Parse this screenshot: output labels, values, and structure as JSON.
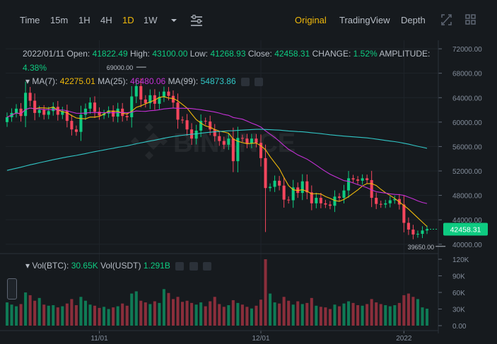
{
  "toolbar": {
    "intervals": [
      "Time",
      "15m",
      "1H",
      "4H",
      "1D",
      "1W"
    ],
    "active_interval": "1D",
    "views": [
      "Original",
      "TradingView",
      "Depth"
    ],
    "active_view": "Original",
    "icons": [
      "chevron-down-icon",
      "indicator-settings-icon",
      "fullscreen-icon",
      "grid-layout-icon"
    ]
  },
  "ohlc": {
    "date": "2022/01/11",
    "open_label": "Open:",
    "open": "41822.49",
    "high_label": "High:",
    "high": "43100.00",
    "low_label": "Low:",
    "low": "41268.93",
    "close_label": "Close:",
    "close": "42458.31",
    "change_label": "CHANGE:",
    "change": "1.52%",
    "amplitude_label": "AMPLITUDE:",
    "amplitude": "4.38%"
  },
  "ma": {
    "ma7_label": "MA(7):",
    "ma7": "42275.01",
    "ma25_label": "MA(25):",
    "ma25": "46480.06",
    "ma99_label": "MA(99):",
    "ma99": "54873.86"
  },
  "vol": {
    "btc_label": "Vol(BTC):",
    "btc": "30.65K",
    "usdt_label": "Vol(USDT)",
    "usdt": "1.291B"
  },
  "colors": {
    "up": "#0ecb81",
    "down": "#f6465d",
    "ma7": "#f0b90b",
    "ma25": "#c530d6",
    "ma99": "#31c6c6",
    "bg": "#161a1e"
  },
  "chart_data": {
    "type": "candlestick",
    "price_axis": {
      "ticks": [
        72000,
        68000,
        64000,
        60000,
        56000,
        52000,
        48000,
        44000,
        40000
      ],
      "tick_labels": [
        "72000.00",
        "68000.00",
        "64000.00",
        "60000.00",
        "56000.00",
        "52000.00",
        "48000.00",
        "44000.00",
        "40000.00"
      ],
      "ylim": [
        38700,
        73400
      ]
    },
    "volume_axis": {
      "ticks": [
        120000,
        90000,
        60000,
        30000,
        0
      ],
      "tick_labels": [
        "120K",
        "90K",
        "60K",
        "30K",
        "0.00"
      ],
      "ylim": [
        0,
        120000
      ]
    },
    "x_labels": [
      {
        "label": "11/01",
        "index": 20
      },
      {
        "label": "12/01",
        "index": 55
      },
      {
        "label": "2022",
        "index": 86
      }
    ],
    "current_price": {
      "label": "42458.31",
      "value": 42458.31
    },
    "annotations": [
      {
        "label": "69000.00",
        "value": 69000,
        "index": 28
      },
      {
        "label": "39650.00",
        "value": 39650,
        "index": 95
      }
    ],
    "close": [
      60800,
      61500,
      62200,
      61000,
      64800,
      63500,
      61500,
      62000,
      61200,
      61800,
      62500,
      61200,
      61800,
      60200,
      58800,
      58400,
      61200,
      62200,
      63200,
      61700,
      61100,
      61400,
      61900,
      60900,
      62200,
      61000,
      60800,
      64200,
      65900,
      63700,
      63100,
      64400,
      63000,
      64100,
      65000,
      64300,
      63200,
      60400,
      60300,
      58800,
      57300,
      58600,
      60200,
      60100,
      58800,
      57700,
      56900,
      56300,
      57300,
      53600,
      57400,
      57300,
      56500,
      57300,
      56600,
      54100,
      49200,
      49400,
      50400,
      49600,
      47300,
      47200,
      49300,
      48400,
      50300,
      48500,
      46700,
      47600,
      46700,
      46500,
      46300,
      47800,
      47600,
      48800,
      50800,
      50600,
      50400,
      50800,
      50500,
      47600,
      46600,
      46500,
      46700,
      47200,
      47400,
      46500,
      43500,
      42400,
      41600,
      41700,
      42250,
      42458
    ],
    "volume": [
      42000,
      38000,
      35000,
      39000,
      60000,
      55000,
      45000,
      50000,
      38000,
      36000,
      37000,
      33000,
      35000,
      40000,
      48000,
      37000,
      52000,
      45000,
      38000,
      36000,
      32000,
      34000,
      30000,
      33000,
      35000,
      40000,
      36000,
      58000,
      62000,
      45000,
      42000,
      39000,
      44000,
      41000,
      66000,
      59000,
      48000,
      52000,
      43000,
      45000,
      41000,
      38000,
      42000,
      35000,
      44000,
      52000,
      39000,
      34000,
      37000,
      46000,
      41000,
      38000,
      34000,
      31000,
      36000,
      47000,
      120000,
      58000,
      42000,
      40000,
      52000,
      45000,
      38000,
      44000,
      39000,
      41000,
      50000,
      36000,
      34000,
      33000,
      30000,
      38000,
      35000,
      40000,
      44000,
      41000,
      37000,
      36000,
      39000,
      48000,
      42000,
      39000,
      37000,
      35000,
      37000,
      41000,
      55000,
      58000,
      52000,
      48000,
      33000,
      30650
    ]
  }
}
